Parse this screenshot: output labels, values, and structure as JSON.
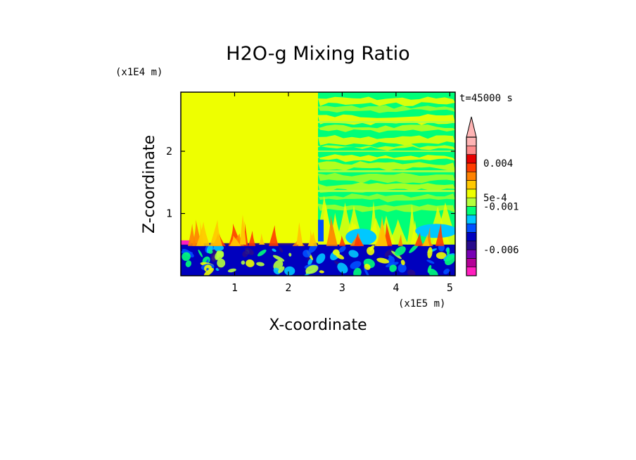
{
  "chart_data": {
    "type": "heatmap",
    "title": "H2O-g Mixing Ratio",
    "xlabel": "X-coordinate",
    "ylabel": "Z-coordinate",
    "x_scale_label": "(x1E5 m)",
    "y_scale_label": "(x1E4 m)",
    "time_label": "t=45000 s",
    "xlim": [
      0,
      5.1
    ],
    "ylim": [
      0,
      2.95
    ],
    "x_ticks": [
      1,
      2,
      3,
      4,
      5
    ],
    "x_tick_labels": [
      "1",
      "2",
      "3",
      "4",
      "5"
    ],
    "y_ticks": [
      1,
      2
    ],
    "y_tick_labels": [
      "1",
      "2"
    ],
    "colorbar": {
      "colors": [
        "#ff1ebe",
        "#b40096",
        "#7800b4",
        "#280a8c",
        "#0000be",
        "#0050ff",
        "#00c8ff",
        "#00ff78",
        "#b4ff3c",
        "#eeff00",
        "#ffc800",
        "#ff8200",
        "#ff3c00",
        "#e60000",
        "#ff8c8c",
        "#ffb4b4"
      ],
      "tick_labels": [
        "0.004",
        "5e-4",
        "-0.001",
        "-0.006"
      ]
    },
    "regions": [
      {
        "label": "left domain x<2.55 above z=0.5",
        "value_class": "yellow"
      },
      {
        "label": "right domain x>2.55 mixed layers",
        "value_class": "green/yellow bands"
      },
      {
        "label": "boundary layer z<0.5",
        "value_class": "blue/green turbulent"
      }
    ]
  }
}
